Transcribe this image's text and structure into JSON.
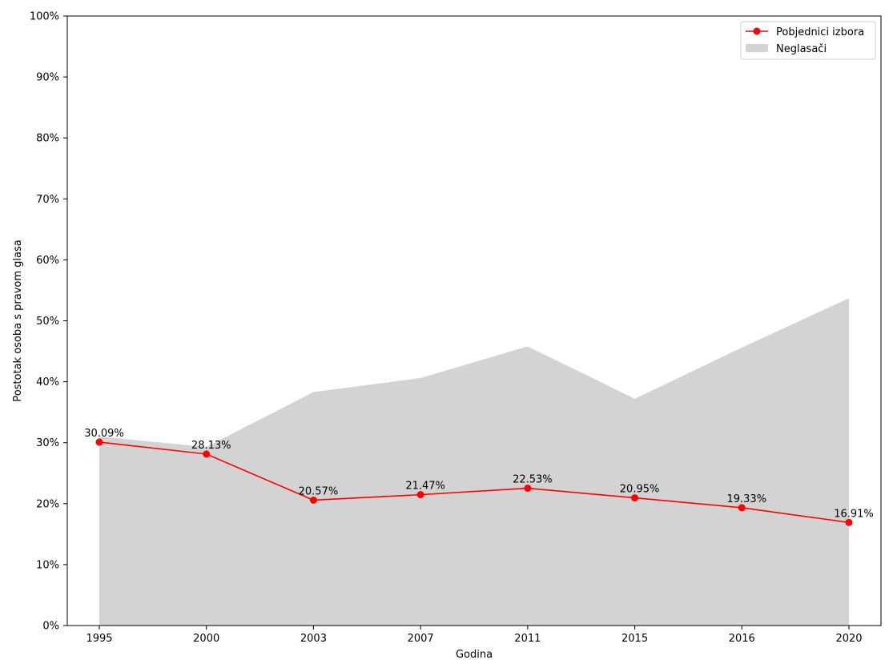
{
  "chart_data": {
    "type": "line",
    "title": "",
    "xlabel": "Godina",
    "ylabel": "Postotak osoba s pravom glasa",
    "categories": [
      "1995",
      "2000",
      "2003",
      "2007",
      "2011",
      "2015",
      "2016",
      "2020"
    ],
    "ylim": [
      0,
      100
    ],
    "yticks": [
      "0%",
      "10%",
      "20%",
      "30%",
      "40%",
      "50%",
      "60%",
      "70%",
      "80%",
      "90%",
      "100%"
    ],
    "series": [
      {
        "name": "Pobjednici izbora",
        "type": "line",
        "color": "#ff0000",
        "values": [
          30.09,
          28.13,
          20.57,
          21.47,
          22.53,
          20.95,
          19.33,
          16.91
        ],
        "labels": [
          "30.09%",
          "28.13%",
          "20.57%",
          "21.47%",
          "22.53%",
          "20.95%",
          "19.33%",
          "16.91%"
        ]
      },
      {
        "name": "Neglasači",
        "type": "area",
        "color": "#d3d3d3",
        "values": [
          31.0,
          29.3,
          38.3,
          40.6,
          45.8,
          37.2,
          45.6,
          53.7
        ]
      }
    ],
    "grid": false,
    "legend": "top-right"
  }
}
